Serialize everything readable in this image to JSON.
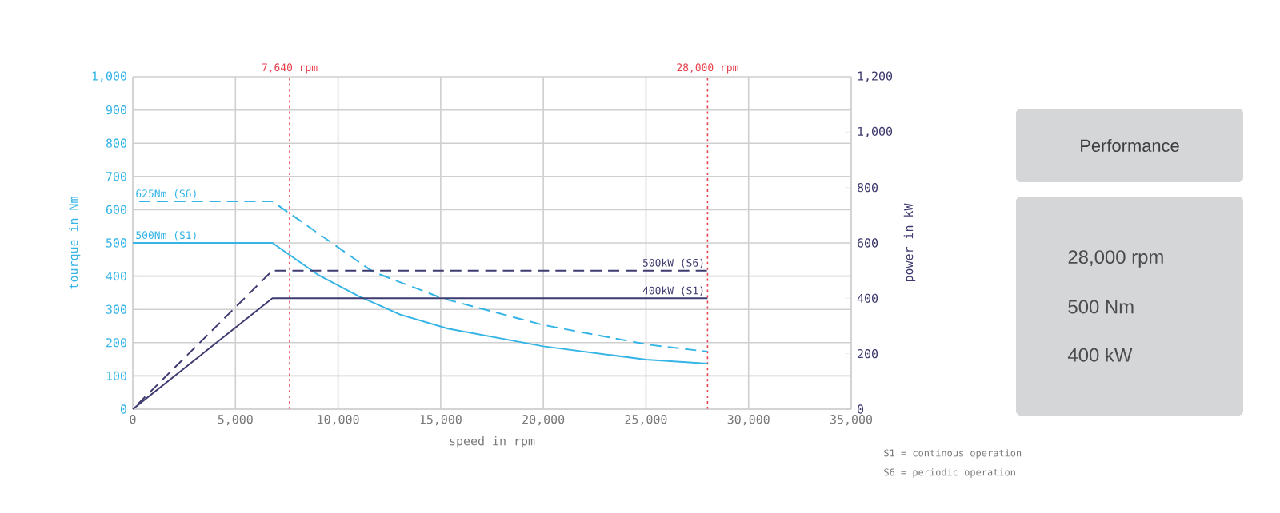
{
  "chart_data": [
    {
      "type": "line",
      "xlabel": "speed in rpm",
      "ylabel": "tourque in Nm",
      "y2label": "power in kW",
      "xlim": [
        0,
        35000
      ],
      "xticks": [
        0,
        {
          "value": 5000,
          "label": "5,000"
        },
        {
          "value": 10000,
          "label": "10,000"
        },
        {
          "value": 15000,
          "label": "15,000"
        },
        {
          "value": 20000,
          "label": "20,000"
        },
        {
          "value": 25000,
          "label": "25,000"
        },
        {
          "value": 30000,
          "label": "30,000"
        },
        {
          "value": 35000,
          "label": "35,000"
        }
      ],
      "ylim": [
        0,
        1000
      ],
      "yticks": [
        0,
        100,
        200,
        300,
        400,
        500,
        600,
        700,
        800,
        900,
        {
          "value": 1000,
          "label": "1,000"
        }
      ],
      "y2lim": [
        0,
        1200
      ],
      "y2ticks": [
        0,
        200,
        400,
        600,
        800,
        {
          "value": 1000,
          "label": "1,000"
        },
        {
          "value": 1200,
          "label": "1,200"
        }
      ],
      "grid": true,
      "series": [
        {
          "name": "625Nm (S6)",
          "color": "#35b4e6",
          "line_style": "dashed",
          "x": [
            0,
            6800,
            9000,
            11700,
            15100,
            20000,
            25100,
            28000
          ],
          "values": [
            625,
            625,
            530,
            413,
            333,
            253,
            194,
            173
          ]
        },
        {
          "name": "500Nm (S1)",
          "color": "#35b4e6",
          "line_style": "solid",
          "x": [
            0,
            6800,
            9000,
            11000,
            13000,
            15350,
            20000,
            25000,
            28000
          ],
          "values": [
            500,
            500,
            405,
            340,
            285,
            242,
            189,
            149,
            137
          ]
        },
        {
          "name": "500kW (S6)",
          "color": "#3e3b70",
          "line_style": "dashed",
          "axis": "y2",
          "x": [
            0,
            6800,
            28000
          ],
          "values": [
            0,
            500,
            500
          ]
        },
        {
          "name": "400kW (S1)",
          "color": "#3e3b70",
          "line_style": "solid",
          "axis": "y2",
          "x": [
            0,
            6800,
            28000
          ],
          "values": [
            0,
            400,
            400
          ]
        }
      ],
      "ref_lines": [
        {
          "axis": "x",
          "value": 7640,
          "label": "7,640 rpm",
          "color": "#e8414e",
          "line_style": "dotted"
        },
        {
          "axis": "x",
          "value": 28000,
          "label": "28,000 rpm",
          "color": "#e8414e",
          "line_style": "dotted"
        }
      ],
      "annotations": [
        "S1 = continous operation",
        "S6 = periodic operation"
      ]
    },
    {
      "type": "other",
      "title": "Performance",
      "annotations": [
        "28,000 rpm",
        "500 Nm",
        "400 kW"
      ]
    }
  ]
}
